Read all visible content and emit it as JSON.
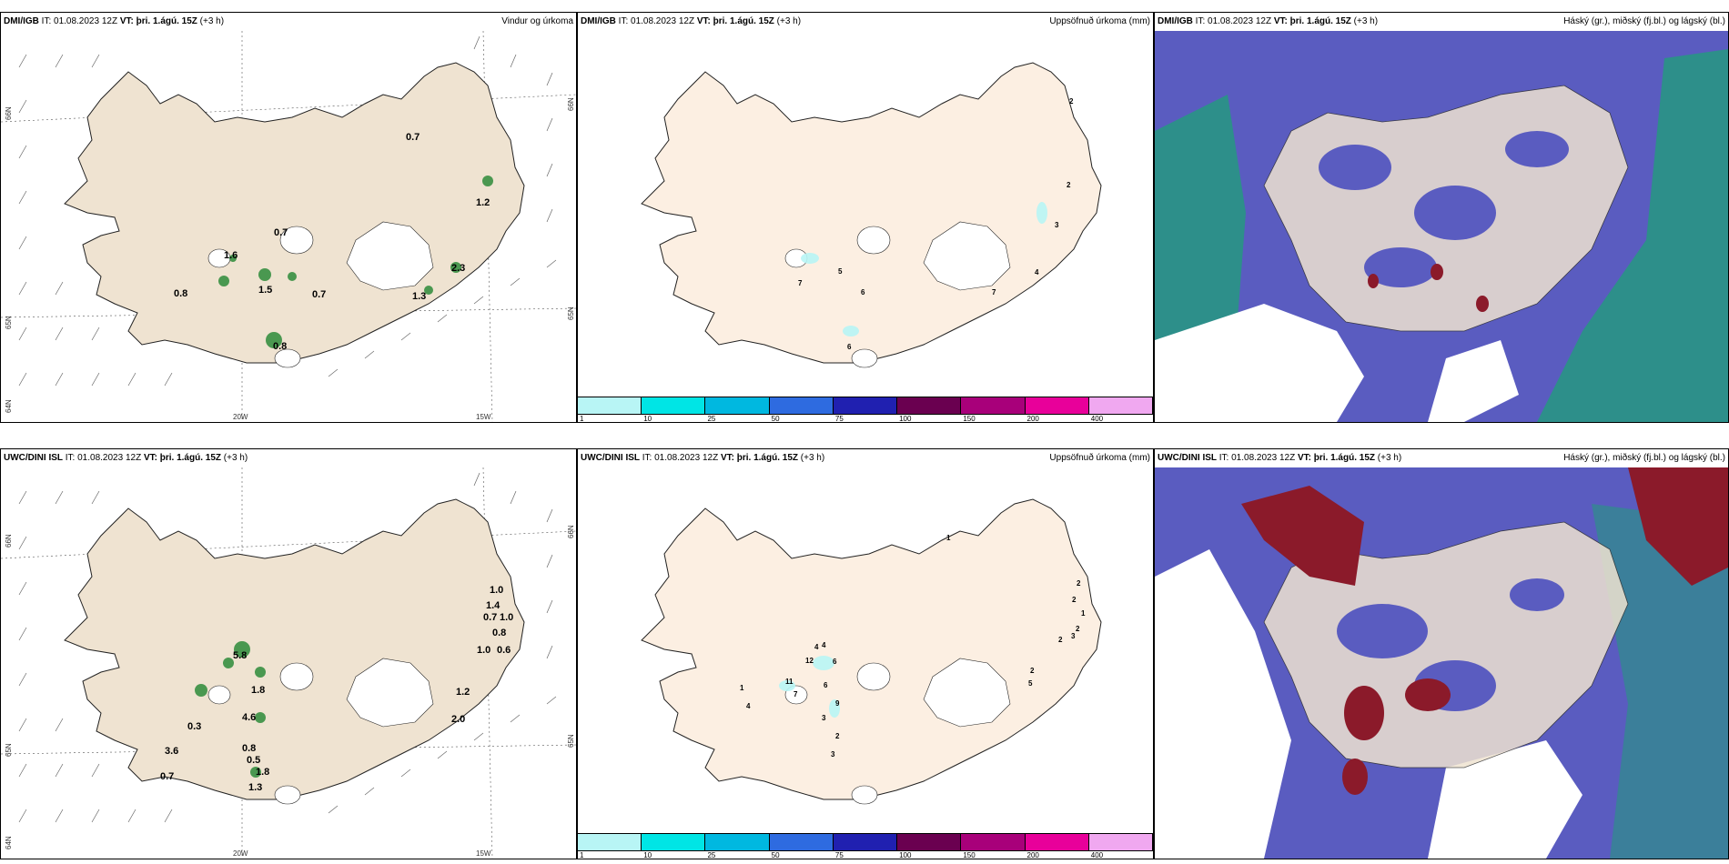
{
  "panels": [
    {
      "model": "DMI/IGB",
      "time": "IT: 01.08.2023 12Z",
      "vt_label": "VT: þri. 1.ágú. 15Z",
      "lead": "(+3 h)",
      "title": "Vindur og úrkoma",
      "values": [
        "0.7",
        "1.2",
        "1.6",
        "0.7",
        "0.8",
        "1.5",
        "0.7",
        "1.3",
        "2.3",
        "0.8"
      ]
    },
    {
      "model": "DMI/IGB",
      "time": "IT: 01.08.2023 12Z",
      "vt_label": "VT: þri. 1.ágú. 15Z",
      "lead": "(+3 h)",
      "title": "Uppsöfnuð úrkoma (mm)",
      "values": [
        "2",
        "2",
        "3",
        "4",
        "7",
        "5",
        "6",
        "7",
        "6"
      ]
    },
    {
      "model": "DMI/IGB",
      "time": "IT: 01.08.2023 12Z",
      "vt_label": "VT: þri. 1.ágú. 15Z",
      "lead": "(+3 h)",
      "title": "Háský (gr.), miðský (fj.bl.) og lágský (bl.)"
    },
    {
      "model": "UWC/DINI ISL",
      "time": "IT: 01.08.2023 12Z",
      "vt_label": "VT: þri. 1.ágú. 15Z",
      "lead": "(+3 h)",
      "title": "",
      "values": [
        "1.0",
        "1.4",
        "0.7",
        "1.0",
        "0.8",
        "1.0",
        "0.6",
        "1.2",
        "2.0",
        "5.8",
        "1.8",
        "4.6",
        "3.6",
        "0.8",
        "0.5",
        "1.8",
        "1.3",
        "0.7",
        "0.3"
      ]
    },
    {
      "model": "UWC/DINI ISL",
      "time": "IT: 01.08.2023 12Z",
      "vt_label": "VT: þri. 1.ágú. 15Z",
      "lead": "(+3 h)",
      "title": "Uppsöfnuð úrkoma (mm)",
      "values": [
        "1",
        "2",
        "2",
        "2",
        "1",
        "2",
        "3",
        "4",
        "4",
        "12",
        "6",
        "11",
        "7",
        "6",
        "1",
        "9",
        "4",
        "3",
        "2",
        "3",
        "2",
        "5"
      ]
    },
    {
      "model": "UWC/DINI ISL",
      "time": "IT: 01.08.2023 12Z",
      "vt_label": "VT: þri. 1.ágú. 15Z",
      "lead": "(+3 h)",
      "title": "Háský (gr.), miðský (fj.bl.) og lágský (bl.)"
    }
  ],
  "coords": {
    "lat66": "66N",
    "lat65": "65N",
    "lat64": "64N",
    "lon20": "20W",
    "lon15": "15W"
  },
  "colorbar": {
    "labels": [
      "1",
      "10",
      "25",
      "50",
      "75",
      "100",
      "150",
      "200",
      "400"
    ],
    "colors": [
      "#b8f5f5",
      "#00e5e5",
      "#00b8e0",
      "#2e6be0",
      "#2020b0",
      "#6a0050",
      "#a8007a",
      "#e8009a",
      "#f0a8f0"
    ]
  },
  "colors": {
    "land": "#efe3d1",
    "land_light": "#fcefe2",
    "cloud_high": "#5a5cc0",
    "cloud_low": "#2d8f8a",
    "cloud_red": "#8b1a2a",
    "precip": "#2e8b3a"
  }
}
